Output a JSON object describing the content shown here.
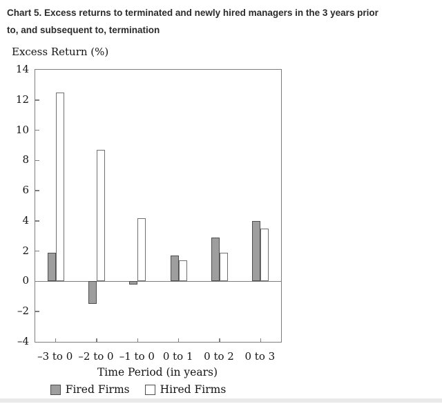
{
  "header": {
    "title_lines": [
      "Chart 5. Excess returns to terminated and newly hired managers in the 3 years prior",
      "to, and subsequent to, termination"
    ]
  },
  "chart_data": {
    "type": "bar",
    "title": "Chart 5. Excess returns to terminated and newly hired managers in the 3 years prior to, and subsequent to, termination",
    "y_axis_label": "Excess Return (%)",
    "x_axis_label": "Time Period (in years)",
    "categories": [
      "–3 to 0",
      "–2 to 0",
      "–1 to 0",
      "0 to 1",
      "0 to 2",
      "0 to 3"
    ],
    "series": [
      {
        "name": "Fired Firms",
        "values": [
          1.9,
          -1.5,
          -0.2,
          1.7,
          2.9,
          4.0
        ],
        "fill": "#9e9e9e",
        "border": "#4d4d4d"
      },
      {
        "name": "Hired Firms",
        "values": [
          12.5,
          8.7,
          4.2,
          1.4,
          1.9,
          3.5
        ],
        "fill": "#ffffff",
        "border": "#6f6f6f"
      }
    ],
    "ylim": [
      -4,
      14
    ],
    "yticks": [
      14,
      12,
      10,
      8,
      6,
      4,
      2,
      0,
      -2,
      -4
    ],
    "ytick_labels": [
      "14",
      "12",
      "10",
      "8",
      "6",
      "4",
      "2",
      "0",
      "–2",
      "–4"
    ],
    "grid": false,
    "zero_line": true,
    "legend_position": "bottom"
  },
  "colors": {
    "axis": "#7d7d7d",
    "title_text": "#2b2b2b",
    "chart_text": "#141414",
    "fired_fill": "#9e9e9e",
    "fired_border": "#4d4d4d",
    "hired_fill": "#ffffff",
    "hired_border": "#6f6f6f",
    "bottom_strip": "#e9e9e9"
  }
}
